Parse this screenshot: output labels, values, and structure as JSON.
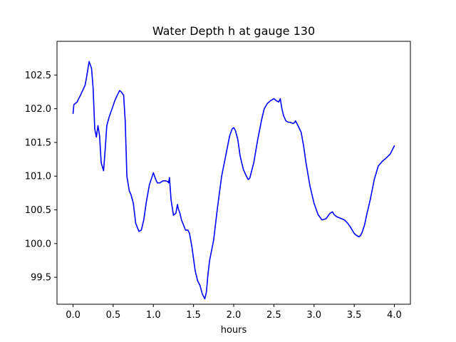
{
  "chart_data": {
    "type": "line",
    "title": "Water Depth h at gauge 130",
    "xlabel": "hours",
    "ylabel": "",
    "xlim": [
      -0.2,
      4.2
    ],
    "ylim": [
      99.1,
      103.0
    ],
    "xticks": [
      0.0,
      0.5,
      1.0,
      1.5,
      2.0,
      2.5,
      3.0,
      3.5,
      4.0
    ],
    "xtick_labels": [
      "0.0",
      "0.5",
      "1.0",
      "1.5",
      "2.0",
      "2.5",
      "3.0",
      "3.5",
      "4.0"
    ],
    "yticks": [
      99.5,
      100.0,
      100.5,
      101.0,
      101.5,
      102.0,
      102.5
    ],
    "ytick_labels": [
      "99.5",
      "100.0",
      "100.5",
      "101.0",
      "101.5",
      "102.0",
      "102.5"
    ],
    "grid": false,
    "legend": "none",
    "series": [
      {
        "color": "#0000ff",
        "x": [
          0.0,
          0.01,
          0.05,
          0.1,
          0.15,
          0.17,
          0.2,
          0.23,
          0.25,
          0.27,
          0.29,
          0.31,
          0.33,
          0.35,
          0.38,
          0.4,
          0.42,
          0.45,
          0.5,
          0.52,
          0.55,
          0.58,
          0.6,
          0.63,
          0.65,
          0.67,
          0.7,
          0.72,
          0.75,
          0.78,
          0.82,
          0.85,
          0.88,
          0.91,
          0.95,
          1.0,
          1.03,
          1.05,
          1.08,
          1.12,
          1.15,
          1.18,
          1.19,
          1.2,
          1.22,
          1.25,
          1.28,
          1.3,
          1.31,
          1.33,
          1.35,
          1.4,
          1.43,
          1.45,
          1.48,
          1.52,
          1.55,
          1.58,
          1.61,
          1.64,
          1.66,
          1.68,
          1.7,
          1.75,
          1.8,
          1.85,
          1.9,
          1.95,
          1.98,
          2.0,
          2.02,
          2.05,
          2.08,
          2.12,
          2.15,
          2.18,
          2.2,
          2.25,
          2.3,
          2.35,
          2.38,
          2.42,
          2.46,
          2.5,
          2.53,
          2.56,
          2.58,
          2.6,
          2.62,
          2.65,
          2.68,
          2.7,
          2.74,
          2.76,
          2.77,
          2.8,
          2.84,
          2.87,
          2.9,
          2.95,
          3.0,
          3.05,
          3.1,
          3.15,
          3.2,
          3.23,
          3.25,
          3.28,
          3.32,
          3.38,
          3.42,
          3.45,
          3.5,
          3.53,
          3.56,
          3.58,
          3.6,
          3.63,
          3.66,
          3.7,
          3.75,
          3.8,
          3.85,
          3.9,
          3.95,
          4.0
        ],
        "y": [
          101.93,
          102.06,
          102.1,
          102.22,
          102.35,
          102.48,
          102.7,
          102.6,
          102.3,
          101.7,
          101.58,
          101.75,
          101.6,
          101.2,
          101.08,
          101.4,
          101.75,
          101.88,
          102.05,
          102.12,
          102.2,
          102.27,
          102.25,
          102.2,
          101.8,
          101.0,
          100.78,
          100.73,
          100.6,
          100.3,
          100.18,
          100.2,
          100.35,
          100.6,
          100.87,
          101.05,
          100.95,
          100.9,
          100.9,
          100.93,
          100.93,
          100.92,
          100.9,
          100.98,
          100.65,
          100.42,
          100.45,
          100.58,
          100.52,
          100.45,
          100.35,
          100.2,
          100.2,
          100.15,
          99.95,
          99.6,
          99.45,
          99.38,
          99.25,
          99.18,
          99.28,
          99.55,
          99.75,
          100.05,
          100.55,
          101.0,
          101.3,
          101.6,
          101.7,
          101.72,
          101.68,
          101.55,
          101.3,
          101.1,
          101.02,
          100.95,
          100.97,
          101.2,
          101.55,
          101.85,
          102.0,
          102.08,
          102.12,
          102.15,
          102.12,
          102.1,
          102.15,
          102.0,
          101.9,
          101.82,
          101.8,
          101.8,
          101.78,
          101.8,
          101.82,
          101.75,
          101.65,
          101.45,
          101.2,
          100.85,
          100.6,
          100.43,
          100.35,
          100.37,
          100.45,
          100.47,
          100.43,
          100.4,
          100.38,
          100.35,
          100.3,
          100.25,
          100.15,
          100.12,
          100.1,
          100.12,
          100.17,
          100.28,
          100.45,
          100.65,
          100.95,
          101.15,
          101.22,
          101.27,
          101.33,
          101.45
        ]
      }
    ]
  }
}
